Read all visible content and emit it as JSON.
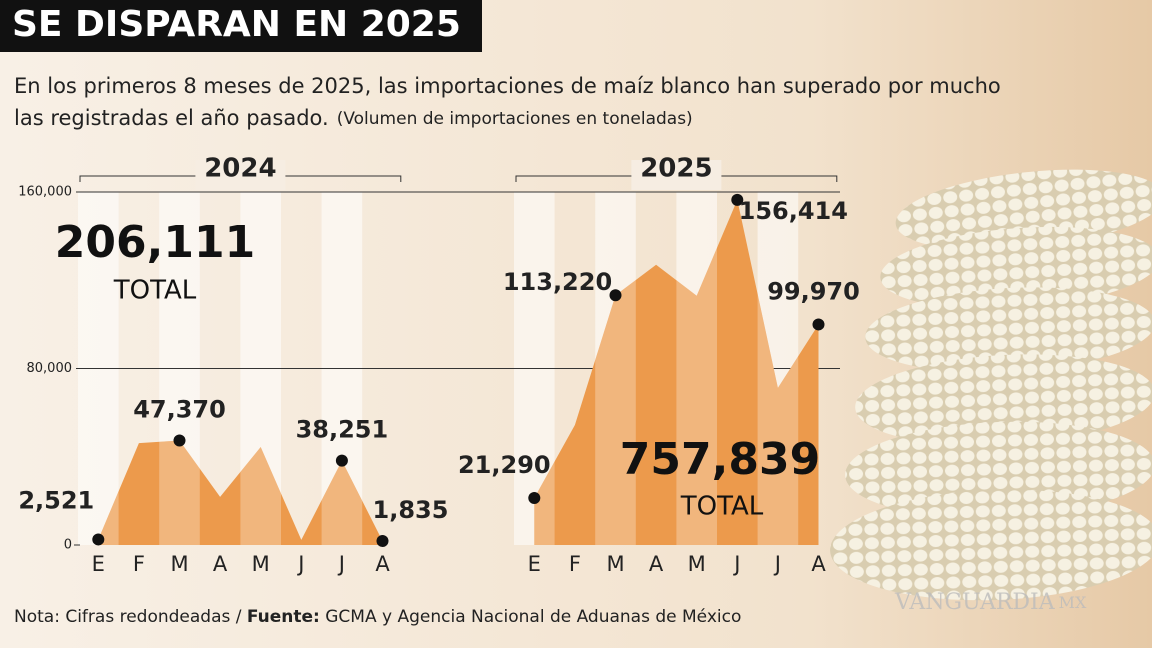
{
  "header": {
    "title": "SE DISPARAN EN 2025",
    "subtitle_line1": "En los primeros 8 meses de 2025, las importaciones de maíz blanco han superado por mucho",
    "subtitle_line2": "las registradas el año pasado.",
    "subtitle_note": "(Volumen de importaciones en toneladas)"
  },
  "chart_data": {
    "type": "area",
    "categories": [
      "E",
      "F",
      "M",
      "A",
      "M",
      "J",
      "J",
      "A"
    ],
    "ylim": [
      0,
      160000
    ],
    "yticks": [
      0,
      {
        "value": 80000,
        "label": "80,000"
      },
      {
        "value": 160000,
        "label": "160,000"
      }
    ],
    "grid": true,
    "series": [
      {
        "name": "2024",
        "color": "#ec9a4c",
        "values": [
          2521,
          46200,
          47370,
          21800,
          44400,
          2300,
          38251,
          1835
        ],
        "value_labels": [
          "2,521",
          null,
          "47,370",
          null,
          null,
          null,
          "38,251",
          "1,835"
        ],
        "total": "206,111",
        "total_label": "TOTAL"
      },
      {
        "name": "2025",
        "color": "#ec9a4c",
        "values": [
          21290,
          54400,
          113220,
          127000,
          113000,
          156414,
          71200,
          99970
        ],
        "value_labels": [
          "21,290",
          null,
          "113,220",
          null,
          null,
          "156,414",
          null,
          "99,970"
        ],
        "total": "757,839",
        "total_label": "TOTAL"
      }
    ]
  },
  "footer": {
    "note": "Nota: Cifras redondeadas / ",
    "source_label": "Fuente:",
    "source": " GCMA y Agencia Nacional de Aduanas de México"
  },
  "watermark": {
    "brand": "VANGUARDIA",
    "suffix": "MX"
  }
}
